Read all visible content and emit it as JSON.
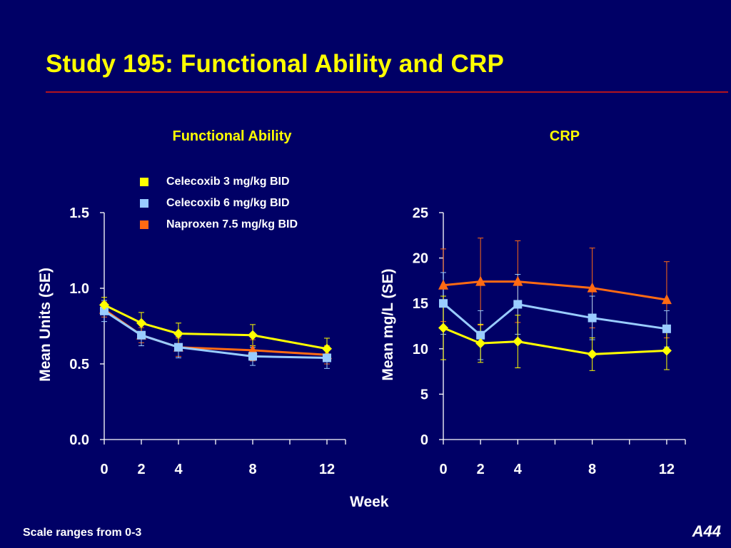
{
  "slide": {
    "title": "Study 195:  Functional Ability and CRP",
    "footnote": "Scale ranges from 0-3",
    "slide_number": "A44",
    "shared_xlabel": "Week"
  },
  "colors": {
    "background": "#000066",
    "title": "#ffff00",
    "rule": "#b3141e",
    "text": "#ffffff",
    "celecoxib_3": "#ffff00",
    "celecoxib_6": "#99ccff",
    "naproxen": "#ff6a13"
  },
  "legend": [
    {
      "label": "Celecoxib 3 mg/kg BID",
      "color": "#ffff00",
      "marker": "diamond"
    },
    {
      "label": "Celecoxib 6 mg/kg BID",
      "color": "#99ccff",
      "marker": "square"
    },
    {
      "label": "Naproxen 7.5 mg/kg BID",
      "color": "#ff6a13",
      "marker": "triangle"
    }
  ],
  "chart_data": [
    {
      "type": "line",
      "title": "Functional Ability",
      "xlabel": "Week",
      "ylabel": "Mean Units (SE)",
      "x": [
        0,
        2,
        4,
        8,
        12
      ],
      "x_ticks_minor": [
        0,
        2,
        4,
        6,
        8,
        10,
        12,
        13
      ],
      "xlim": [
        0,
        13
      ],
      "ylim": [
        0,
        1.5
      ],
      "y_ticks": [
        "0.0",
        "0.5",
        "1.0",
        "1.5"
      ],
      "series": [
        {
          "name": "Celecoxib 3 mg/kg BID",
          "color": "#ffff00",
          "marker": "diamond",
          "values": [
            0.89,
            0.77,
            0.7,
            0.69,
            0.6
          ],
          "errors": [
            0.05,
            0.07,
            0.07,
            0.07,
            0.07
          ]
        },
        {
          "name": "Celecoxib 6 mg/kg BID",
          "color": "#99ccff",
          "marker": "square",
          "values": [
            0.85,
            0.69,
            0.61,
            0.55,
            0.54
          ],
          "errors": [
            0.07,
            0.07,
            0.07,
            0.06,
            0.07
          ]
        },
        {
          "name": "Naproxen 7.5 mg/kg BID",
          "color": "#ff6a13",
          "marker": "triangle",
          "values": [
            0.86,
            0.69,
            0.61,
            0.59,
            0.56
          ],
          "errors": [
            0.05,
            0.05,
            0.06,
            0.07,
            0.06
          ]
        }
      ]
    },
    {
      "type": "line",
      "title": "CRP",
      "xlabel": "Week",
      "ylabel": "Mean mg/L (SE)",
      "x": [
        0,
        2,
        4,
        8,
        12
      ],
      "x_ticks_minor": [
        0,
        2,
        4,
        6,
        8,
        10,
        12,
        13
      ],
      "xlim": [
        0,
        13
      ],
      "ylim": [
        0,
        25
      ],
      "y_ticks": [
        "0",
        "5",
        "10",
        "15",
        "20",
        "25"
      ],
      "series": [
        {
          "name": "Celecoxib 3 mg/kg BID",
          "color": "#ffff00",
          "marker": "diamond",
          "values": [
            12.3,
            10.6,
            10.8,
            9.4,
            9.8
          ],
          "errors": [
            3.5,
            2.1,
            2.9,
            1.8,
            2.1
          ]
        },
        {
          "name": "Celecoxib 6 mg/kg BID",
          "color": "#99ccff",
          "marker": "square",
          "values": [
            15.0,
            11.5,
            14.9,
            13.4,
            12.2
          ],
          "errors": [
            3.4,
            2.7,
            3.3,
            2.4,
            2.0
          ]
        },
        {
          "name": "Naproxen 7.5 mg/kg BID",
          "color": "#ff6a13",
          "marker": "triangle",
          "values": [
            17.0,
            17.4,
            17.4,
            16.7,
            15.4
          ],
          "errors": [
            4.0,
            4.8,
            4.5,
            4.4,
            4.2
          ]
        }
      ]
    }
  ]
}
